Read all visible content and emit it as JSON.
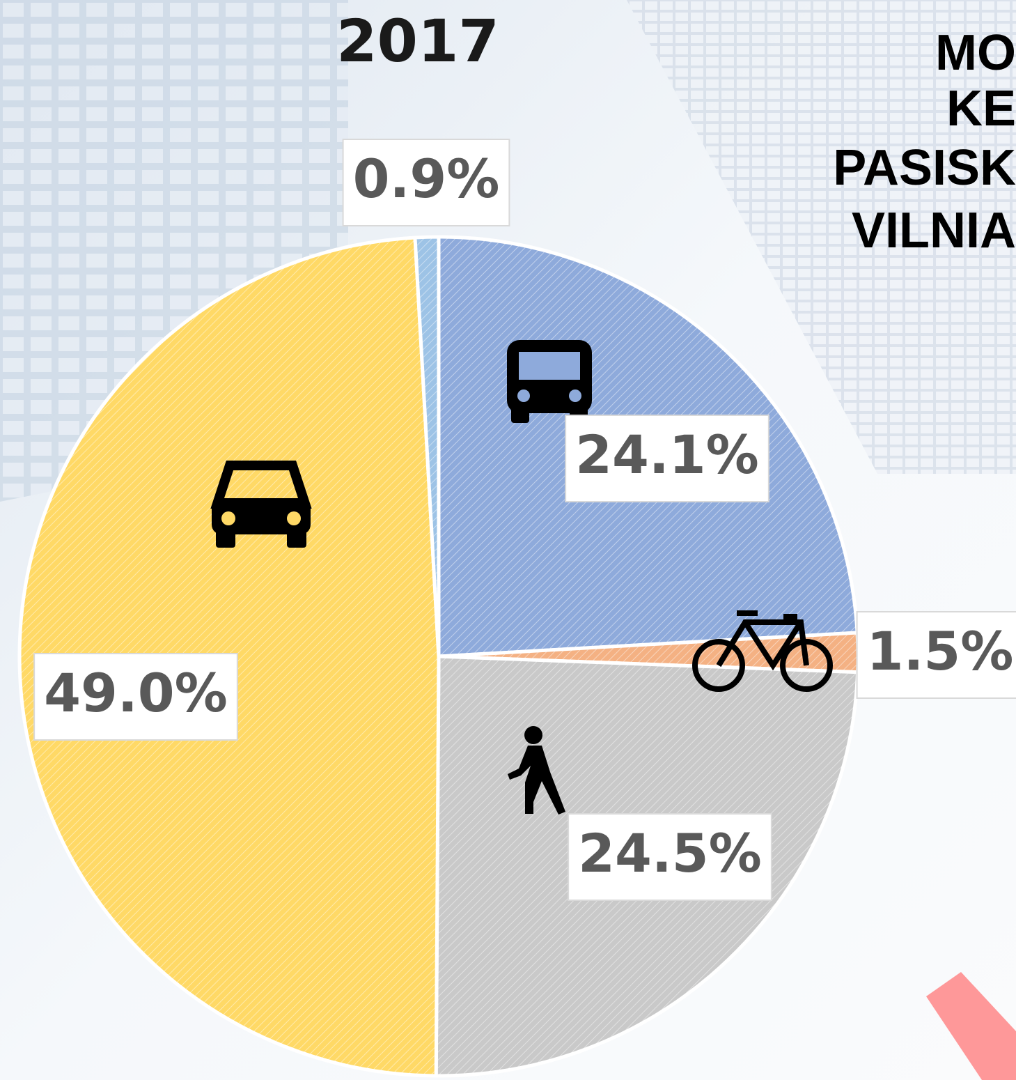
{
  "chart_data": {
    "type": "pie",
    "title": "2017",
    "annotations": [
      "MO",
      "KE",
      "PASISK",
      "VILNIA"
    ],
    "values": [
      24.1,
      1.5,
      24.5,
      49.0,
      0.9
    ],
    "value_labels": [
      "24.1%",
      "1.5%",
      "24.5%",
      "49.0%",
      "0.9%"
    ],
    "colors": [
      "#8eaadb",
      "#f4b183",
      "#c9c9c9",
      "#ffd966",
      "#9dc3e6"
    ]
  }
}
